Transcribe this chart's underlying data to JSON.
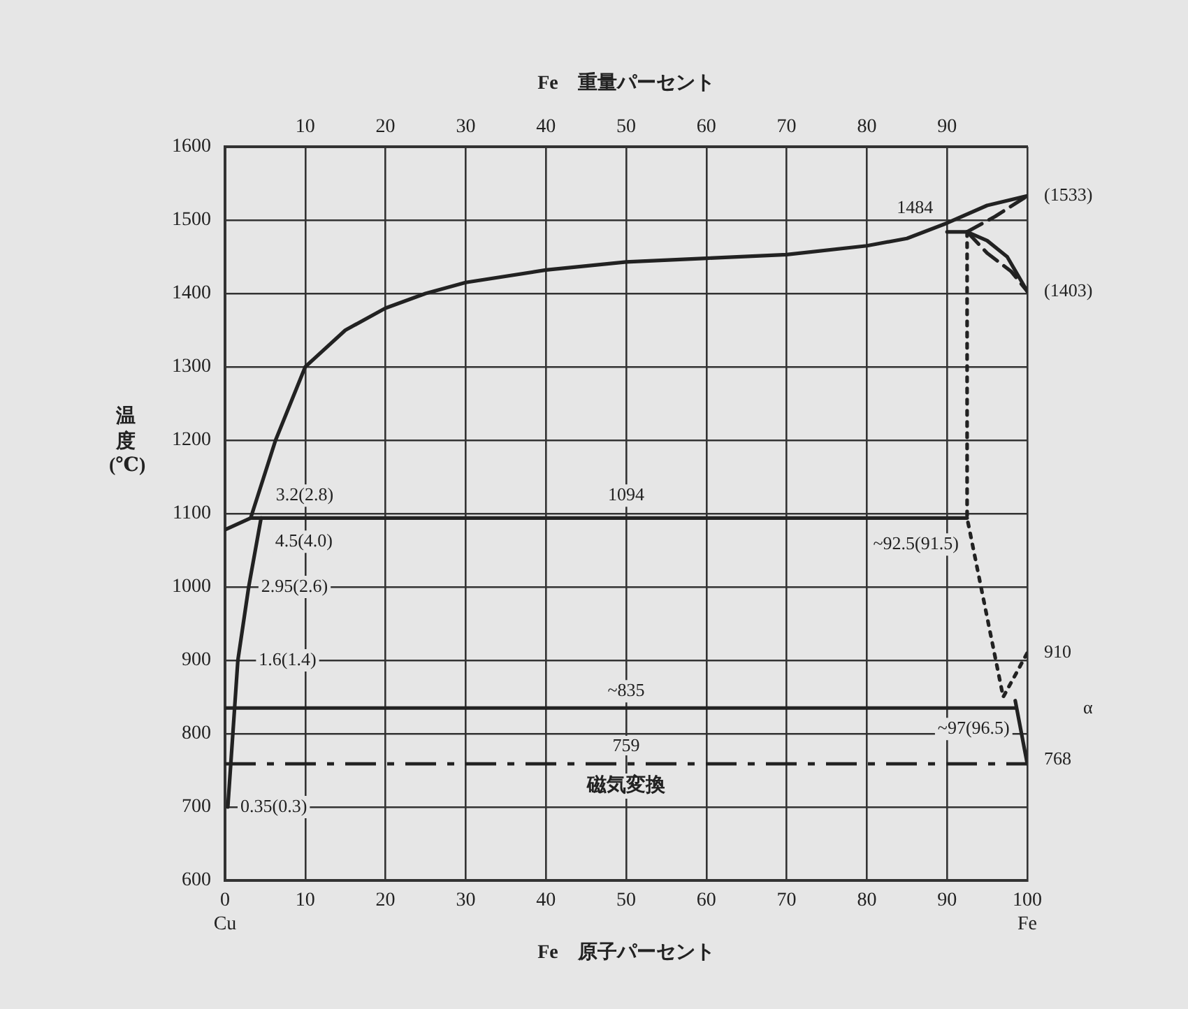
{
  "chart_data": {
    "type": "line",
    "xlabel": "Fe　原子パーセント",
    "x2label": "Fe　重量パーセント",
    "ylabel": "温度(℃)",
    "xlim": [
      0,
      100
    ],
    "xticks": [
      {
        "value": 0,
        "label": "0\nCu"
      },
      10,
      20,
      30,
      40,
      50,
      60,
      70,
      80,
      90,
      {
        "value": 100,
        "label": "100\nFe"
      }
    ],
    "x2lim": [
      0,
      100
    ],
    "x2ticks": [
      10,
      20,
      30,
      40,
      50,
      60,
      70,
      80,
      90
    ],
    "ylim": [
      600,
      1600
    ],
    "yticks": [
      600,
      700,
      800,
      900,
      1000,
      1100,
      1200,
      1300,
      1400,
      1500,
      1600
    ],
    "grid": true,
    "series": [
      {
        "color": "#222222",
        "line_style": "solid",
        "x": [
          0,
          3.2,
          6.3,
          10,
          15,
          20,
          25,
          30,
          40,
          50,
          60,
          70,
          80,
          85,
          90,
          95,
          100
        ],
        "values": [
          1078,
          1094,
          1200,
          1300,
          1350,
          1380,
          1400,
          1415,
          1432,
          1443,
          1448,
          1453,
          1465,
          1475,
          1496,
          1520,
          1533
        ]
      },
      {
        "color": "#222222",
        "line_style": "solid",
        "x": [
          90,
          92.5,
          95,
          97.5,
          100
        ],
        "values": [
          1484,
          1484,
          1472,
          1450,
          1403
        ]
      },
      {
        "color": "#222222",
        "line_style": "dashed",
        "x": [
          92.5,
          96,
          100
        ],
        "values": [
          1484,
          1505,
          1533
        ]
      },
      {
        "color": "#222222",
        "line_style": "dashed",
        "x": [
          92.5,
          95,
          98,
          100
        ],
        "values": [
          1484,
          1455,
          1430,
          1403
        ]
      },
      {
        "color": "#222222",
        "line_style": "solid",
        "x": [
          3.2,
          92.5
        ],
        "values": [
          1094,
          1094
        ]
      },
      {
        "color": "#222222",
        "line_style": "solid",
        "x": [
          4.5,
          2.95,
          1.6,
          0.35
        ],
        "values": [
          1094,
          1000,
          900,
          700
        ]
      },
      {
        "color": "#222222",
        "line_style": "solid",
        "x": [
          0,
          98.5
        ],
        "values": [
          835,
          835
        ]
      },
      {
        "color": "#222222",
        "line_style": "solid",
        "x": [
          98.5,
          100
        ],
        "values": [
          845,
          759
        ]
      },
      {
        "color": "#222222",
        "line_style": "dotted",
        "x": [
          92.5,
          92.5,
          97,
          100
        ],
        "values": [
          1484,
          1094,
          850,
          910
        ]
      }
    ],
    "ref_lines": [
      {
        "axis": "y",
        "value": 759,
        "label": "759",
        "color": "#222222",
        "line_style": "dashed"
      }
    ],
    "annotations": [
      {
        "text": "3.2(2.8)",
        "x": 3.2,
        "y": 1094
      },
      {
        "text": "4.5(4.0)",
        "x": 4.5,
        "y": 1094
      },
      {
        "text": "2.95(2.6)",
        "x": 2.95,
        "y": 1000
      },
      {
        "text": "1.6(1.4)",
        "x": 1.6,
        "y": 900
      },
      {
        "text": "0.35(0.3)",
        "x": 0.35,
        "y": 700
      },
      {
        "text": "1094",
        "x": 50,
        "y": 1094
      },
      {
        "text": "~92.5(91.5)",
        "x": 92.5,
        "y": 1094
      },
      {
        "text": "~835",
        "x": 50,
        "y": 835
      },
      {
        "text": "~97(96.5)",
        "x": 98.5,
        "y": 835
      },
      "磁気変換",
      {
        "text": "1484",
        "x": 90,
        "y": 1484
      },
      {
        "text": "(1533)",
        "x": 100,
        "y": 1533
      },
      {
        "text": "(1403)",
        "x": 100,
        "y": 1403
      },
      {
        "text": "910",
        "x": 100,
        "y": 910
      },
      "α",
      {
        "text": "768",
        "x": 100,
        "y": 759
      }
    ]
  }
}
